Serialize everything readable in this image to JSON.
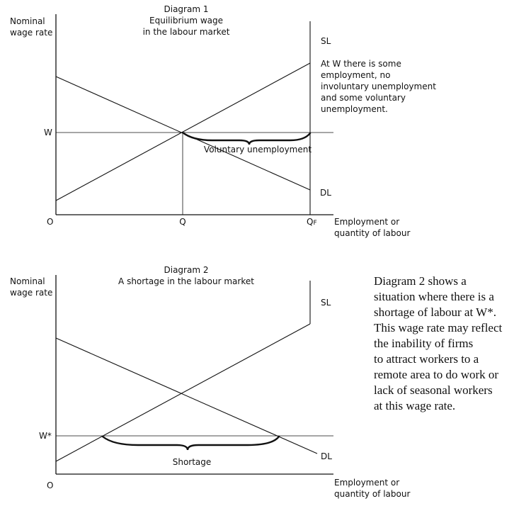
{
  "diagram1": {
    "title_lines": [
      "Diagram 1",
      "Equilibrium wage",
      "in the labour market"
    ],
    "y_axis_label_lines": [
      "Nominal",
      "wage rate"
    ],
    "x_axis_label_lines": [
      "Employment or",
      "quantity of labour"
    ],
    "origin_label": "O",
    "wage_label": "W",
    "q_label": "Q",
    "qf_label_main": "Q",
    "qf_label_sub": "F",
    "supply_label": "SL",
    "demand_label": "DL",
    "brace_label": "Voluntary unemployment",
    "note_lines": [
      "At W there is some",
      "employment, no",
      "involuntary unemployment",
      "and some voluntary",
      "unemployment."
    ]
  },
  "diagram2": {
    "title_lines": [
      "Diagram 2",
      "A shortage in the labour market"
    ],
    "y_axis_label_lines": [
      "Nominal",
      "wage rate"
    ],
    "x_axis_label_lines": [
      "Employment or",
      "quantity of labour"
    ],
    "origin_label": "O",
    "wage_label": "W*",
    "supply_label": "SL",
    "demand_label": "DL",
    "brace_label": "Shortage",
    "note_lines": [
      "Diagram 2 shows a",
      "situation where there is a",
      "shortage of labour at W*.",
      "This wage rate may reflect",
      "the inability of firms",
      "to attract workers to a",
      "remote area to do work or",
      "lack of seasonal workers",
      "at this wage rate."
    ]
  }
}
